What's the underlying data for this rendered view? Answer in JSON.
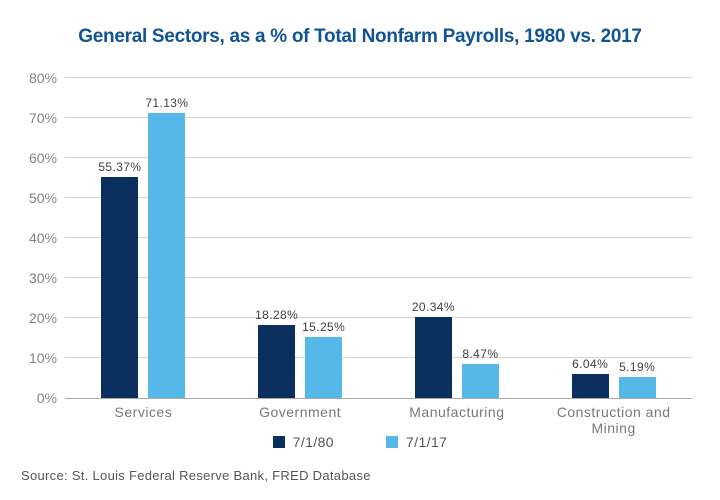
{
  "title": "General Sectors, as a % of Total Nonfarm Payrolls, 1980 vs. 2017",
  "source": "Source: St. Louis Federal Reserve Bank, FRED Database",
  "colors": {
    "title_blue": "#115496",
    "series_1980": "#0b2f5f",
    "series_2017": "#55b8e8",
    "gridline": "#d4d4d4",
    "baseline": "#a9a9a9",
    "axis_text": "#808285",
    "value_text": "#414042"
  },
  "chart_data": {
    "type": "bar",
    "title": "General Sectors, as a % of Total Nonfarm Payrolls, 1980 vs. 2017",
    "categories": [
      "Services",
      "Government",
      "Manufacturing",
      "Construction and Mining"
    ],
    "series": [
      {
        "name": "7/1/80",
        "color": "#0b2f5f",
        "values": [
          55.37,
          18.28,
          20.34,
          6.04
        ],
        "labels": [
          "55.37%",
          "18.28%",
          "20.34%",
          "6.04%"
        ]
      },
      {
        "name": "7/1/17",
        "color": "#55b8e8",
        "values": [
          71.13,
          15.25,
          8.47,
          5.19
        ],
        "labels": [
          "71.13%",
          "15.25%",
          "8.47%",
          "5.19%"
        ]
      }
    ],
    "xlabel": "",
    "ylabel": "",
    "ylim": [
      0,
      80
    ],
    "y_tick_step": 10,
    "y_tick_labels": [
      "0%",
      "10%",
      "20%",
      "30%",
      "40%",
      "50%",
      "60%",
      "70%",
      "80%"
    ],
    "grid": true,
    "legend_position": "bottom"
  }
}
